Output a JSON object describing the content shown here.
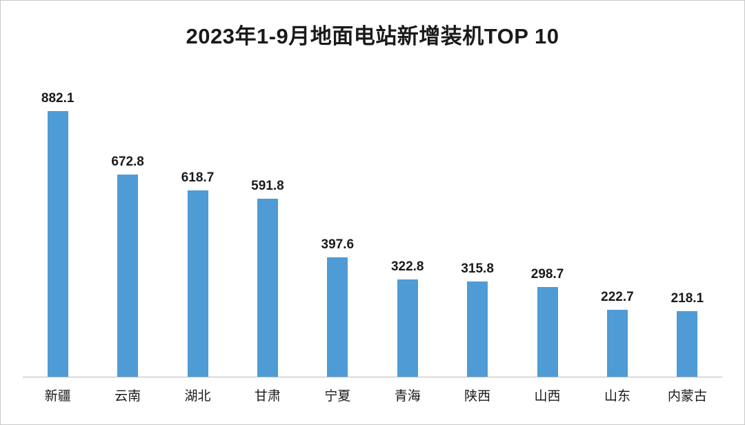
{
  "chart_data": {
    "type": "bar",
    "title": "2023年1-9月地面电站新增装机TOP 10",
    "categories": [
      "新疆",
      "云南",
      "湖北",
      "甘肃",
      "宁夏",
      "青海",
      "陕西",
      "山西",
      "山东",
      "内蒙古"
    ],
    "values": [
      882.1,
      672.8,
      618.7,
      591.8,
      397.6,
      322.8,
      315.8,
      298.7,
      222.7,
      218.1
    ],
    "value_labels": [
      "882.1",
      "672.8",
      "618.7",
      "591.8",
      "397.6",
      "322.8",
      "315.8",
      "298.7",
      "222.7",
      "218.1"
    ],
    "xlabel": "",
    "ylabel": "",
    "ylim": [
      0,
      1000
    ],
    "grid": false,
    "legend": false,
    "bar_color": "#4E9BD5",
    "background_color": "#ffffff",
    "axis_line_color": "#b7b7b7"
  }
}
